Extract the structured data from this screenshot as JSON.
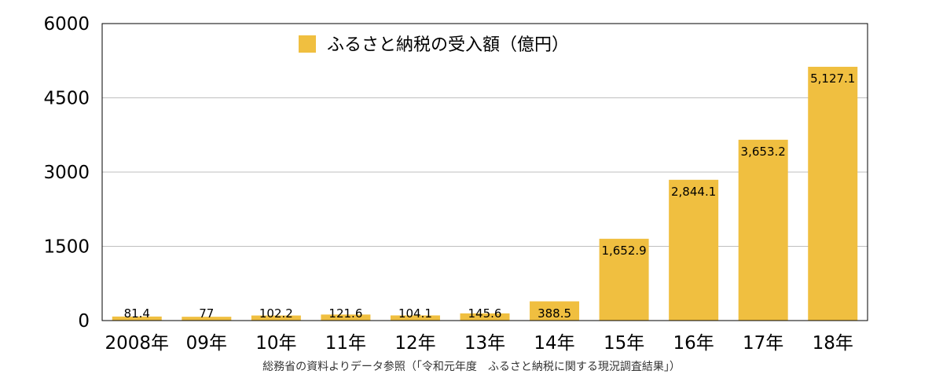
{
  "chart_data": {
    "type": "bar",
    "categories": [
      "2008年",
      "09年",
      "10年",
      "11年",
      "12年",
      "13年",
      "14年",
      "15年",
      "16年",
      "17年",
      "18年"
    ],
    "values": [
      81.4,
      77,
      102.2,
      121.6,
      104.1,
      145.6,
      388.5,
      1652.9,
      2844.1,
      3653.2,
      5127.1
    ],
    "data_labels": [
      "81.4",
      "77",
      "102.2",
      "121.6",
      "104.1",
      "145.6",
      "388.5",
      "1,652.9",
      "2,844.1",
      "3,653.2",
      "5,127.1"
    ],
    "series": [
      {
        "name": "ふるさと納税の受入額（億円）"
      }
    ],
    "ylim": [
      0,
      6000
    ],
    "yticks": [
      0,
      1500,
      3000,
      4500,
      6000
    ],
    "ytick_labels": [
      "0",
      "1500",
      "3000",
      "4500",
      "6000"
    ],
    "grid": true,
    "legend_position": "top-center",
    "colors": {
      "bar": "#F0BF40",
      "grid": "#BFBFBF",
      "frame": "#000000"
    }
  },
  "source_note": "総務省の資料よりデータ参照（「令和元年度　ふるさと納税に関する現況調査結果」）"
}
